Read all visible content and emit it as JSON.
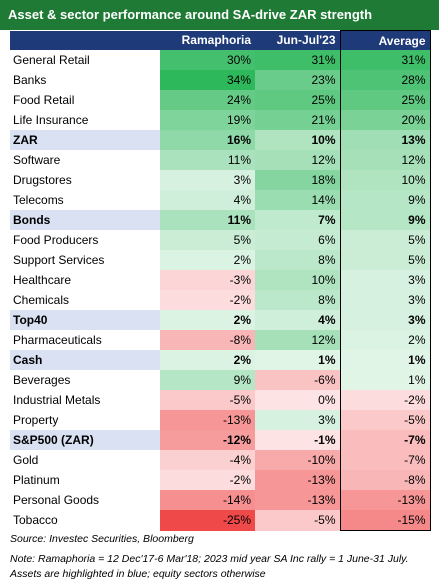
{
  "title": "Asset & sector performance around SA-drive ZAR strength",
  "columns": [
    "",
    "Ramaphoria",
    "Jun-Jul'23",
    "Average"
  ],
  "rows": [
    {
      "name": "General Retail",
      "v": [
        "30%",
        "31%",
        "31%"
      ],
      "n": [
        30,
        31,
        31
      ],
      "asset": false
    },
    {
      "name": "Banks",
      "v": [
        "34%",
        "23%",
        "28%"
      ],
      "n": [
        34,
        23,
        28
      ],
      "asset": false
    },
    {
      "name": "Food Retail",
      "v": [
        "24%",
        "25%",
        "25%"
      ],
      "n": [
        24,
        25,
        25
      ],
      "asset": false
    },
    {
      "name": "Life Insurance",
      "v": [
        "19%",
        "21%",
        "20%"
      ],
      "n": [
        19,
        21,
        20
      ],
      "asset": false
    },
    {
      "name": "ZAR",
      "v": [
        "16%",
        "10%",
        "13%"
      ],
      "n": [
        16,
        10,
        13
      ],
      "asset": true
    },
    {
      "name": "Software",
      "v": [
        "11%",
        "12%",
        "12%"
      ],
      "n": [
        11,
        12,
        12
      ],
      "asset": false
    },
    {
      "name": "Drugstores",
      "v": [
        "3%",
        "18%",
        "10%"
      ],
      "n": [
        3,
        18,
        10
      ],
      "asset": false
    },
    {
      "name": "Telecoms",
      "v": [
        "4%",
        "14%",
        "9%"
      ],
      "n": [
        4,
        14,
        9
      ],
      "asset": false
    },
    {
      "name": "Bonds",
      "v": [
        "11%",
        "7%",
        "9%"
      ],
      "n": [
        11,
        7,
        9
      ],
      "asset": true
    },
    {
      "name": "Food Producers",
      "v": [
        "5%",
        "6%",
        "5%"
      ],
      "n": [
        5,
        6,
        5
      ],
      "asset": false
    },
    {
      "name": "Support Services",
      "v": [
        "2%",
        "8%",
        "5%"
      ],
      "n": [
        2,
        8,
        5
      ],
      "asset": false
    },
    {
      "name": "Healthcare",
      "v": [
        "-3%",
        "10%",
        "3%"
      ],
      "n": [
        -3,
        10,
        3
      ],
      "asset": false
    },
    {
      "name": "Chemicals",
      "v": [
        "-2%",
        "8%",
        "3%"
      ],
      "n": [
        -2,
        8,
        3
      ],
      "asset": false
    },
    {
      "name": "Top40",
      "v": [
        "2%",
        "4%",
        "3%"
      ],
      "n": [
        2,
        4,
        3
      ],
      "asset": true
    },
    {
      "name": "Pharmaceuticals",
      "v": [
        "-8%",
        "12%",
        "2%"
      ],
      "n": [
        -8,
        12,
        2
      ],
      "asset": false
    },
    {
      "name": "Cash",
      "v": [
        "2%",
        "1%",
        "1%"
      ],
      "n": [
        2,
        1,
        1
      ],
      "asset": true
    },
    {
      "name": "Beverages",
      "v": [
        "9%",
        "-6%",
        "1%"
      ],
      "n": [
        9,
        -6,
        1
      ],
      "asset": false
    },
    {
      "name": "Industrial Metals",
      "v": [
        "-5%",
        "0%",
        "-2%"
      ],
      "n": [
        -5,
        0,
        -2
      ],
      "asset": false
    },
    {
      "name": "Property",
      "v": [
        "-13%",
        "3%",
        "-5%"
      ],
      "n": [
        -13,
        3,
        -5
      ],
      "asset": false
    },
    {
      "name": "S&P500 (ZAR)",
      "v": [
        "-12%",
        "-1%",
        "-7%"
      ],
      "n": [
        -12,
        -1,
        -7
      ],
      "asset": true
    },
    {
      "name": "Gold",
      "v": [
        "-4%",
        "-10%",
        "-7%"
      ],
      "n": [
        -4,
        -10,
        -7
      ],
      "asset": false
    },
    {
      "name": "Platinum",
      "v": [
        "-2%",
        "-13%",
        "-8%"
      ],
      "n": [
        -2,
        -13,
        -8
      ],
      "asset": false
    },
    {
      "name": "Personal Goods",
      "v": [
        "-14%",
        "-13%",
        "-13%"
      ],
      "n": [
        -14,
        -13,
        -13
      ],
      "asset": false
    },
    {
      "name": "Tobacco",
      "v": [
        "-25%",
        "-5%",
        "-15%"
      ],
      "n": [
        -25,
        -5,
        -15
      ],
      "asset": false
    }
  ],
  "source": "Source: Investec Securities, Bloomberg",
  "note": "Note: Ramaphoria = 12 Dec'17-6 Mar'18; 2023 mid year SA Inc rally = 1 June-31 July. Assets are highlighted in blue; equity sectors otherwise",
  "colors": {
    "header": "#1f3a78",
    "title": "#1f7a35",
    "asset_highlight": "#d9e1f2",
    "positive_max": "#2eb85c",
    "negative_max": "#f0494a"
  }
}
